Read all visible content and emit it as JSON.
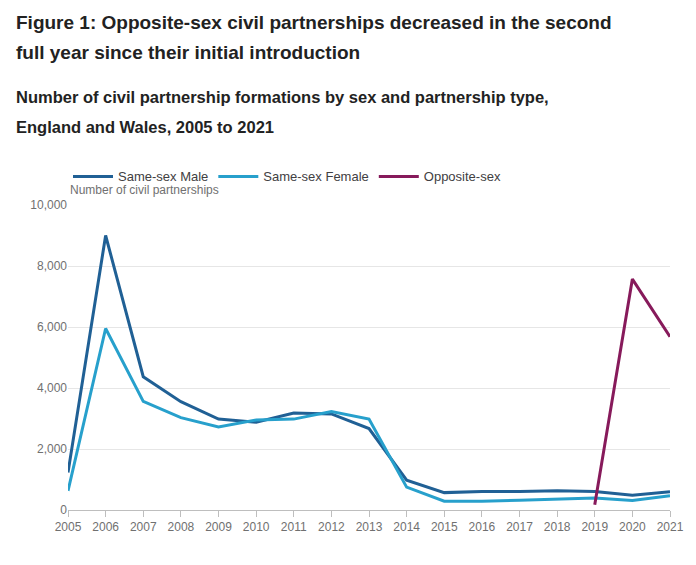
{
  "chart_data": {
    "type": "line",
    "title": "Figure 1: Opposite-sex civil partnerships decreased in the second full year since their initial introduction",
    "subtitle": "Number of civil partnership formations by sex and partnership type, England and Wales, 2005 to 2021",
    "y_label": "Number of civil partnerships",
    "categories": [
      "2005",
      "2006",
      "2007",
      "2008",
      "2009",
      "2010",
      "2011",
      "2012",
      "2013",
      "2014",
      "2015",
      "2016",
      "2017",
      "2018",
      "2019",
      "2020",
      "2021"
    ],
    "series": [
      {
        "name": "Same-sex Male",
        "color": "#206095",
        "values": [
          1230,
          9000,
          4370,
          3550,
          2980,
          2880,
          3180,
          3150,
          2670,
          980,
          570,
          610,
          610,
          630,
          610,
          480,
          600
        ]
      },
      {
        "name": "Same-sex Female",
        "color": "#27a0cc",
        "values": [
          630,
          5950,
          3560,
          3030,
          2720,
          2950,
          2980,
          3230,
          2980,
          750,
          290,
          290,
          320,
          350,
          390,
          310,
          470
        ]
      },
      {
        "name": "Opposite-sex",
        "color": "#871a5b",
        "values": [
          null,
          null,
          null,
          null,
          null,
          null,
          null,
          null,
          null,
          null,
          null,
          null,
          null,
          null,
          170,
          7570,
          5680
        ]
      }
    ],
    "ylim": [
      0,
      10000
    ],
    "yticks": [
      0,
      {
        "value": 2000,
        "label": "2,000"
      },
      {
        "value": 4000,
        "label": "4,000"
      },
      {
        "value": 6000,
        "label": "6,000"
      },
      {
        "value": 8000,
        "label": "8,000"
      },
      {
        "value": 10000,
        "label": "10,000"
      }
    ],
    "grid": true,
    "legend": "top"
  }
}
